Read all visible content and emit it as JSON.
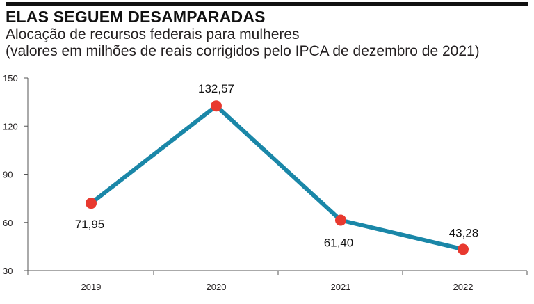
{
  "chart_data": {
    "type": "line",
    "title": "ELAS SEGUEM DESAMPARADAS",
    "subtitle_line1": "Alocação de recursos federais para mulheres",
    "subtitle_line2": "(valores em milhões de reais corrigidos pelo IPCA de dezembro de 2021)",
    "categories": [
      "2019",
      "2020",
      "2021",
      "2022"
    ],
    "values": [
      71.95,
      132.57,
      61.4,
      43.28
    ],
    "value_labels": [
      "71,95",
      "132,57",
      "61,40",
      "43,28"
    ],
    "y_ticks": [
      30,
      60,
      90,
      120,
      150
    ],
    "y_tick_labels": [
      "30",
      "60",
      "90",
      "120",
      "150"
    ],
    "ylim": [
      30,
      150
    ],
    "xlabel": "",
    "ylabel": "",
    "grid": false,
    "legend": "none",
    "colors": {
      "line": "#1a87a8",
      "marker": "#e8392f",
      "axis": "#555555"
    }
  }
}
